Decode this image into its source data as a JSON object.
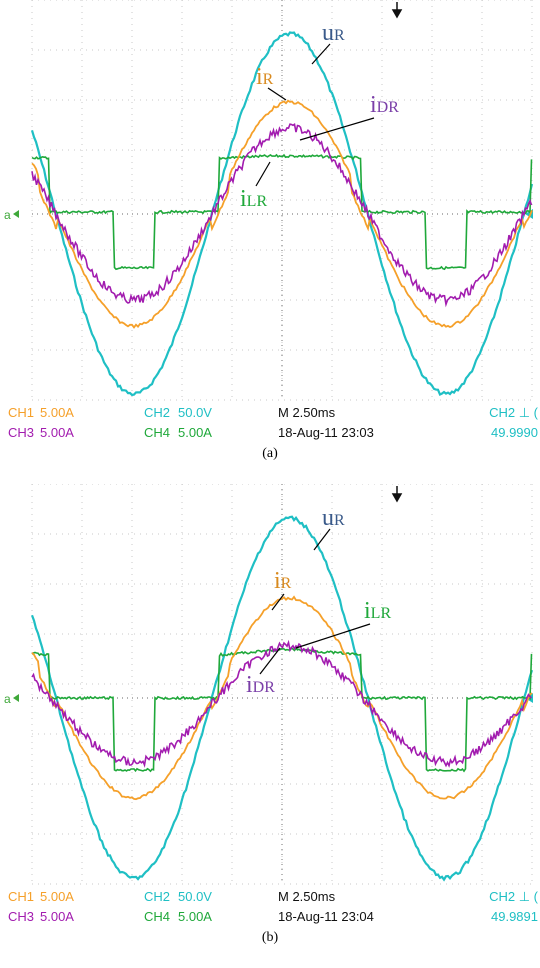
{
  "chart_data": [
    {
      "type": "line",
      "caption": "(a)",
      "x_unit_per_div": "M 2.50ms",
      "series": [
        {
          "name": "uR",
          "color": "#1fbfc4"
        },
        {
          "name": "iR",
          "color": "#f5a02a"
        },
        {
          "name": "iDR",
          "color": "#a21caf"
        },
        {
          "name": "iLR",
          "color": "#1fa83a"
        }
      ],
      "labels": [
        {
          "main": "u",
          "sub": "R",
          "color": "#3a5a8a",
          "series": "uR"
        },
        {
          "main": "i",
          "sub": "R",
          "color": "#d98a1e",
          "series": "iR"
        },
        {
          "main": "i",
          "sub": "DR",
          "color": "#7a3ea8",
          "series": "iDR"
        },
        {
          "main": "i",
          "sub": "LR",
          "color": "#1fa83a",
          "series": "iLR"
        }
      ],
      "status": {
        "ch1": "CH1",
        "ch1_val": "5.00A",
        "ch2": "CH2",
        "ch2_val": "50.0V",
        "ch3": "CH3",
        "ch3_val": "5.00A",
        "ch4": "CH4",
        "ch4_val": "5.00A",
        "timebase": "M 2.50ms",
        "date": "18-Aug-11 23:03",
        "trig": "CH2 ⊥ (",
        "freq": "49.9990"
      },
      "marker_a": "a",
      "colors": {
        "ch1": "#f5a02a",
        "ch2": "#1fbfc4",
        "ch3": "#a21caf",
        "ch4": "#1fa83a"
      }
    },
    {
      "type": "line",
      "caption": "(b)",
      "x_unit_per_div": "M 2.50ms",
      "series": [
        {
          "name": "uR",
          "color": "#1fbfc4"
        },
        {
          "name": "iR",
          "color": "#f5a02a"
        },
        {
          "name": "iLR",
          "color": "#1fa83a"
        },
        {
          "name": "iDR",
          "color": "#a21caf"
        }
      ],
      "labels": [
        {
          "main": "u",
          "sub": "R",
          "color": "#3a5a8a",
          "series": "uR"
        },
        {
          "main": "i",
          "sub": "R",
          "color": "#d98a1e",
          "series": "iR"
        },
        {
          "main": "i",
          "sub": "LR",
          "color": "#1fa83a",
          "series": "iLR"
        },
        {
          "main": "i",
          "sub": "DR",
          "color": "#7a3ea8",
          "series": "iDR"
        }
      ],
      "status": {
        "ch1": "CH1",
        "ch1_val": "5.00A",
        "ch2": "CH2",
        "ch2_val": "50.0V",
        "ch3": "CH3",
        "ch3_val": "5.00A",
        "ch4": "CH4",
        "ch4_val": "5.00A",
        "timebase": "M 2.50ms",
        "date": "18-Aug-11 23:04",
        "trig": "CH2 ⊥ (",
        "freq": "49.9891"
      },
      "marker_a": "a",
      "colors": {
        "ch1": "#f5a02a",
        "ch2": "#1fbfc4",
        "ch3": "#a21caf",
        "ch4": "#1fa83a"
      }
    }
  ]
}
